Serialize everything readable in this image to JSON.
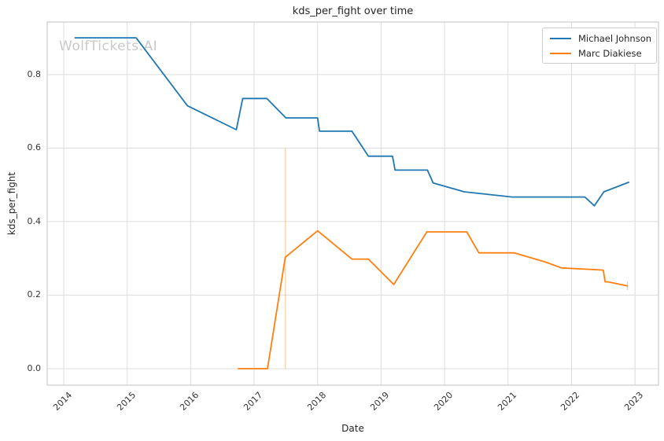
{
  "watermark": "WolfTickets.AI",
  "chart_data": {
    "type": "line",
    "title": "kds_per_fight over time",
    "xlabel": "Date",
    "ylabel": "kds_per_fight",
    "x_ticks": [
      2014,
      2015,
      2016,
      2017,
      2018,
      2019,
      2020,
      2021,
      2022,
      2023
    ],
    "y_ticks": [
      0.0,
      0.2,
      0.4,
      0.6,
      0.8
    ],
    "xlim": [
      2013.74,
      2023.37
    ],
    "ylim": [
      -0.045,
      0.943
    ],
    "grid": true,
    "legend_position": "upper right",
    "series": [
      {
        "name": "Michael Johnson",
        "color": "#1f77b4",
        "x": [
          2014.18,
          2015.14,
          2015.95,
          2016.72,
          2016.82,
          2017.2,
          2017.5,
          2018.0,
          2018.03,
          2018.54,
          2018.8,
          2019.18,
          2019.22,
          2019.73,
          2019.82,
          2020.31,
          2021.06,
          2022.21,
          2022.36,
          2022.51,
          2022.9
        ],
        "y": [
          0.9,
          0.9,
          0.715,
          0.65,
          0.735,
          0.735,
          0.682,
          0.682,
          0.646,
          0.646,
          0.578,
          0.578,
          0.54,
          0.54,
          0.505,
          0.481,
          0.467,
          0.467,
          0.443,
          0.481,
          0.507
        ]
      },
      {
        "name": "Marc Diakiese",
        "color": "#ff7f0e",
        "x": [
          2016.75,
          2017.21,
          2017.49,
          2018.0,
          2018.54,
          2018.8,
          2019.2,
          2019.72,
          2020.35,
          2020.54,
          2021.1,
          2021.59,
          2021.84,
          2022.5,
          2022.53,
          2022.58,
          2022.88
        ],
        "y": [
          0.0,
          0.0,
          0.303,
          0.375,
          0.298,
          0.298,
          0.229,
          0.372,
          0.372,
          0.315,
          0.315,
          0.29,
          0.274,
          0.268,
          0.236,
          0.236,
          0.225
        ]
      }
    ],
    "annotations": [
      {
        "type": "vline",
        "x": 2017.49,
        "y0": 0.0,
        "y1": 0.6,
        "color": "#ff7f0e",
        "opacity": 0.35
      },
      {
        "type": "vline",
        "x": 2022.88,
        "y0": 0.214,
        "y1": 0.237,
        "color": "#ff7f0e",
        "opacity": 0.45
      }
    ]
  },
  "style": {
    "grid_color": "#dcdcdc",
    "spine_color": "#cccccc",
    "text_color": "#262626",
    "tick_color": "#333333",
    "watermark_color": "#c9c9c9",
    "background": "#ffffff",
    "line_width": 1.8
  }
}
